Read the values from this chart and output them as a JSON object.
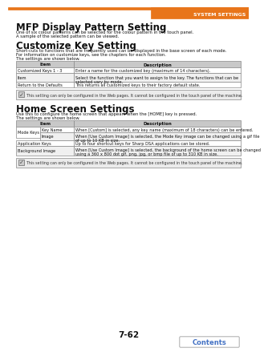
{
  "page_label": "7-62",
  "header_text": "SYSTEM SETTINGS",
  "header_bar_color": "#E8751A",
  "bg_color": "#FFFFFF",
  "section1_title": "MFP Display Pattern Setting",
  "section1_body_1": "One of six colour patterns can be selected for the colour pattern in the touch panel.",
  "section1_body_2": "A sample of the selected pattern can be viewed.",
  "section2_title": "Customize Key Setting",
  "section2_body_1": "Short-cuts to functions that are frequently used can be displayed in the base screen of each mode.",
  "section2_body_2": "For information on customize keys, see the chapters for each function.",
  "section2_body_3": "The settings are shown below.",
  "t1_h1": "Item",
  "t1_h2": "Description",
  "t1_r1c1": "Customized Keys 1 - 3",
  "t1_r1c2": "Enter a name for the customized key (maximum of 14 characters).",
  "t1_r2c1": "Item",
  "t1_r2c2a": "Select the function that you want to assign to the key. The functions that can be",
  "t1_r2c2b": "selected vary by mode.",
  "t1_r3c1": "Return to the Defaults",
  "t1_r3c2": "This returns all customized keys to their factory default state.",
  "note_text": "This setting can only be configured in the Web pages. It cannot be configured in the touch panel of the machine.",
  "section3_title": "Home Screen Settings",
  "section3_body_1": "Use this to configure the home screen that appears when the [HOME] key is pressed.",
  "section3_body_2": "The settings are shown below.",
  "t2_h1": "Item",
  "t2_h2": "Description",
  "t2_r1c1a": "Mode Keys",
  "t2_r1c1b": "Key Name",
  "t2_r1c2": "When [Custom] is selected, any key name (maximum of 18 characters) can be entered.",
  "t2_r2c1b": "Image",
  "t2_r2c2a": "When [Use Custom Image] is selected, the Mode Key image can be changed using a gif file",
  "t2_r2c2b": "of up to 10 KB in size.",
  "t2_r3c1": "Application Keys",
  "t2_r3c2": "Up to four shortcut keys for Sharp DSA applications can be stored.",
  "t2_r4c1": "Background Image",
  "t2_r4c2a": "When [Use Custom Image] is selected, the background of the home screen can be changed",
  "t2_r4c2b": "using a 360 x 800 dot gif, png, jpg, or bmp file of up to 310 KB in size.",
  "note2_text": "This setting can only be configured in the Web pages. It cannot be configured in the touch panel of the machine.",
  "contents_text": "Contents",
  "contents_color": "#4472C4",
  "table_header_bg": "#C8C8C8",
  "table_border": "#888888",
  "note_bg": "#EBEBEB",
  "lmargin": 10,
  "rmargin": 10,
  "title_fs": 8.5,
  "body_fs": 3.8,
  "table_fs": 3.6,
  "header_fs": 4.0
}
